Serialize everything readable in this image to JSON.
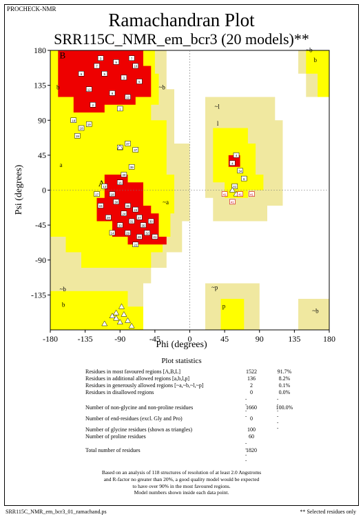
{
  "header": "PROCHECK-NMR",
  "title": "Ramachandran Plot",
  "subtitle": "SRR115C_NMR_em_bcr3 (20 models)**",
  "chart_data": {
    "type": "scatter",
    "xlabel": "Phi (degrees)",
    "ylabel": "Psi (degrees)",
    "xlim": [
      -180,
      180
    ],
    "ylim": [
      -180,
      180
    ],
    "xticks": [
      "-180",
      "-135",
      "-90",
      "-45",
      "0",
      "45",
      "90",
      "135",
      "180"
    ],
    "yticks": [
      "180",
      "135",
      "90",
      "45",
      "0",
      "-45",
      "-90",
      "-135"
    ],
    "region_labels": [
      "B",
      "b",
      "~b",
      "~b",
      "b",
      "~l",
      "l",
      "a",
      "A",
      "~a",
      "~b",
      "b",
      "~p",
      "p",
      "~b"
    ],
    "region_colors": {
      "favoured": "#ee0000",
      "allowed": "#ffff00",
      "generous": "#f0e8a0",
      "disallowed": "#ffffff"
    },
    "residues": [
      {
        "phi": -120,
        "psi": 160,
        "label": "7"
      },
      {
        "phi": -110,
        "psi": 150,
        "label": "5"
      },
      {
        "phi": -95,
        "psi": 165,
        "label": "9"
      },
      {
        "phi": -85,
        "psi": 145,
        "label": "3"
      },
      {
        "phi": -70,
        "psi": 160,
        "label": "10"
      },
      {
        "phi": -130,
        "psi": 130,
        "label": "12"
      },
      {
        "phi": -100,
        "psi": 125,
        "label": "8"
      },
      {
        "phi": -80,
        "psi": 120,
        "label": "12"
      },
      {
        "phi": -65,
        "psi": 140,
        "label": "5"
      },
      {
        "phi": -140,
        "psi": 150,
        "label": "6"
      },
      {
        "phi": -115,
        "psi": 170,
        "label": "3"
      },
      {
        "phi": -75,
        "psi": 170,
        "label": "7"
      },
      {
        "phi": -90,
        "psi": 105,
        "label": "1"
      },
      {
        "phi": -125,
        "psi": 110,
        "label": "2"
      },
      {
        "phi": -150,
        "psi": 90,
        "label": "18"
      },
      {
        "phi": -140,
        "psi": 80,
        "label": "18"
      },
      {
        "phi": -130,
        "psi": 85,
        "label": "19"
      },
      {
        "phi": -145,
        "psi": 70,
        "label": "19"
      },
      {
        "phi": -80,
        "psi": 60,
        "label": "37"
      },
      {
        "phi": -70,
        "psi": 52,
        "label": "37"
      },
      {
        "phi": -90,
        "psi": 55,
        "label": "37"
      },
      {
        "phi": -75,
        "psi": 30,
        "label": "39"
      },
      {
        "phi": -85,
        "psi": 20,
        "label": "40"
      },
      {
        "phi": -90,
        "psi": 10,
        "label": "16"
      },
      {
        "phi": -110,
        "psi": 5,
        "label": "13"
      },
      {
        "phi": -100,
        "psi": -5,
        "label": "18"
      },
      {
        "phi": -95,
        "psi": -15,
        "label": "38"
      },
      {
        "phi": -80,
        "psi": -20,
        "label": "36"
      },
      {
        "phi": -70,
        "psi": -25,
        "label": "23"
      },
      {
        "phi": -65,
        "psi": -35,
        "label": "27"
      },
      {
        "phi": -60,
        "psi": -45,
        "label": "35"
      },
      {
        "phi": -75,
        "psi": -40,
        "label": "31"
      },
      {
        "phi": -85,
        "psi": -30,
        "label": "24"
      },
      {
        "phi": -90,
        "psi": -45,
        "label": "33"
      },
      {
        "phi": -80,
        "psi": -55,
        "label": "29"
      },
      {
        "phi": -65,
        "psi": -60,
        "label": "26"
      },
      {
        "phi": -55,
        "psi": -55,
        "label": "32"
      },
      {
        "phi": -50,
        "psi": -40,
        "label": "30"
      },
      {
        "phi": -45,
        "psi": -60,
        "label": "21"
      },
      {
        "phi": -100,
        "psi": -55,
        "label": "14"
      },
      {
        "phi": -105,
        "psi": -35,
        "label": "28"
      },
      {
        "phi": -115,
        "psi": -20,
        "label": "15"
      },
      {
        "phi": -120,
        "psi": -5,
        "label": "17"
      },
      {
        "phi": -70,
        "psi": -70,
        "label": "22"
      },
      {
        "phi": 60,
        "psi": 45,
        "label": "4"
      },
      {
        "phi": 55,
        "psi": 35,
        "label": "4"
      },
      {
        "phi": 65,
        "psi": 25,
        "label": "34"
      },
      {
        "phi": 70,
        "psi": 15,
        "label": "6"
      },
      {
        "phi": 58,
        "psi": 5,
        "label": "41"
      }
    ],
    "glycines": [
      {
        "phi": -95,
        "psi": -165
      },
      {
        "phi": -85,
        "psi": -160
      },
      {
        "phi": -90,
        "psi": -170
      },
      {
        "phi": -80,
        "psi": -168
      },
      {
        "phi": -100,
        "psi": -162
      },
      {
        "phi": -88,
        "psi": -150
      },
      {
        "phi": -95,
        "psi": -158
      },
      {
        "phi": -110,
        "psi": -172
      },
      {
        "phi": -75,
        "psi": -175
      },
      {
        "phi": -90,
        "psi": 55
      },
      {
        "phi": 55,
        "psi": 0
      },
      {
        "phi": 60,
        "psi": -5
      }
    ],
    "selected_residues": [
      {
        "phi": 45,
        "psi": -5,
        "label": "41"
      },
      {
        "phi": 65,
        "psi": -5,
        "label": "41"
      },
      {
        "phi": 80,
        "psi": -5,
        "label": "41"
      },
      {
        "phi": 55,
        "psi": -15,
        "label": "41"
      }
    ]
  },
  "stats": {
    "heading": "Plot statistics",
    "rows": [
      {
        "label": "Residues in most favoured regions  [A,B,L]",
        "count": "1522",
        "pct": "91.7%"
      },
      {
        "label": "Residues in additional allowed regions  [a,b,l,p]",
        "count": "136",
        "pct": "8.2%"
      },
      {
        "label": "Residues in generously allowed regions  [~a,~b,~l,~p]",
        "count": "2",
        "pct": "0.1%"
      },
      {
        "label": "Residues in disallowed regions",
        "count": "0",
        "pct": "0.0%"
      },
      {
        "label": "Number of non-glycine and non-proline residues",
        "count": "1660",
        "pct": "100.0%"
      },
      {
        "label": "Number of end-residues (excl. Gly and Pro)",
        "count": "0",
        "pct": ""
      },
      {
        "label": "Number of glycine residues (shown as triangles)",
        "count": "100",
        "pct": ""
      },
      {
        "label": "Number of proline residues",
        "count": "60",
        "pct": ""
      },
      {
        "label": "Total number of residues",
        "count": "1820",
        "pct": ""
      }
    ],
    "separator_short": "----",
    "separator_long": "------"
  },
  "footnote": [
    "Based on an analysis of 118 structures of resolution of at least 2.0 Angstroms",
    "and R-factor no greater than 20%, a good quality model would be expected",
    "to have over 90% in the most favoured regions.",
    "Model numbers shown inside each data point."
  ],
  "footer_left": "SRR115C_NMR_em_bcr3_01_ramachand.ps",
  "footer_right": "** Selected residues only"
}
